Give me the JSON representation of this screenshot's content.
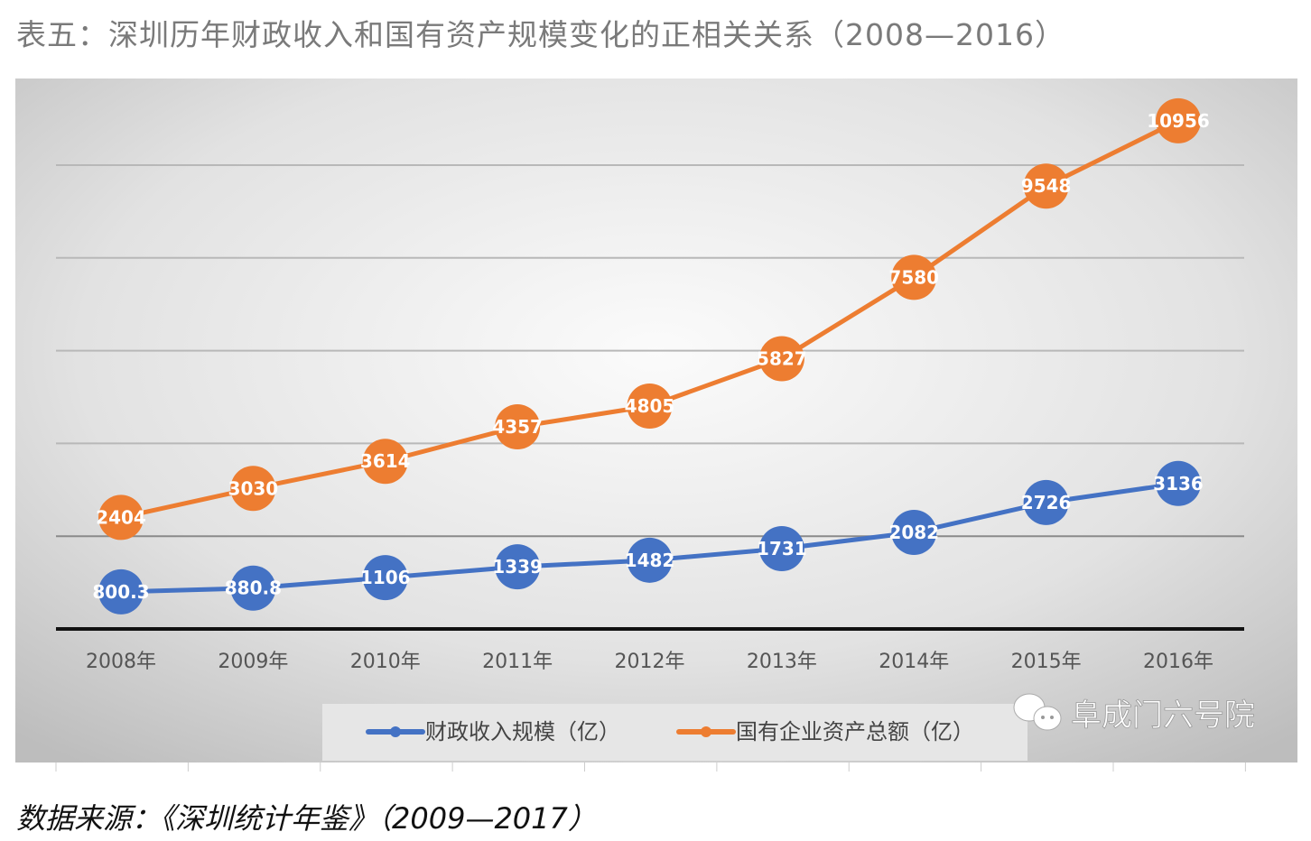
{
  "title": "表五：深圳历年财政收入和国有资产规模变化的正相关关系（2008—2016）",
  "source": "数据来源：《深圳统计年鉴》（2009—2017）",
  "watermark": "阜成门六号院",
  "chart_data": {
    "type": "line",
    "title": "表五：深圳历年财政收入和国有资产规模变化的正相关关系（2008—2016）",
    "xlabel": "",
    "ylabel": "",
    "categories": [
      "2008年",
      "2009年",
      "2010年",
      "2011年",
      "2012年",
      "2013年",
      "2014年",
      "2015年",
      "2016年"
    ],
    "ylim": [
      0,
      12000
    ],
    "grid": true,
    "legend_position": "bottom",
    "series": [
      {
        "name": "财政收入规模（亿）",
        "color": "#4472C4",
        "values": [
          800.3,
          880.8,
          1106,
          1339,
          1482,
          1731,
          2082,
          2726,
          3136
        ],
        "labels": [
          "800.3",
          "880.8",
          "1106",
          "1339",
          "1482",
          "1731",
          "2082",
          "2726",
          "3136"
        ]
      },
      {
        "name": "国有企业资产总额（亿）",
        "color": "#ED7D31",
        "values": [
          2404,
          3030,
          3614,
          4357,
          4805,
          5827,
          7580,
          9548,
          10956
        ],
        "labels": [
          "2404",
          "3030",
          "3614",
          "4357",
          "4805",
          "5827",
          "7580",
          "9548",
          "10956"
        ]
      }
    ]
  }
}
